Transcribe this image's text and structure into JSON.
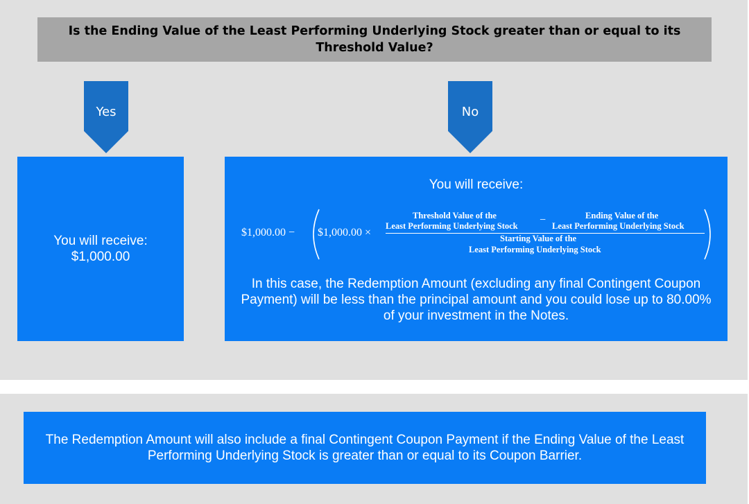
{
  "question": "Is the Ending Value of the Least Performing Underlying Stock greater than or equal to its Threshold Value?",
  "arrows": {
    "yes": "Yes",
    "no": "No"
  },
  "yes_box": {
    "line1": "You will receive:",
    "line2": "$1,000.00"
  },
  "no_box": {
    "heading": "You will receive:",
    "formula": {
      "principal1": "$1,000.00 −",
      "principal2": "$1,000.00 ×",
      "num_left_1": "Threshold Value of the",
      "num_left_2": "Least Performing Underlying Stock",
      "minus": "−",
      "num_right_1": "Ending Value of the",
      "num_right_2": "Least Performing Underlying Stock",
      "den_1": "Starting Value of the",
      "den_2": "Least Performing Underlying Stock"
    },
    "note": "In this case, the Redemption Amount (excluding any final Contingent Coupon Payment) will be less than the principal amount and you could lose up to 80.00% of your investment in the Notes."
  },
  "bottom_note": "The Redemption Amount will also include a final Contingent Coupon Payment if the Ending Value of the Least Performing Underlying Stock is greater than or equal to its Coupon Barrier.",
  "colors": {
    "box_blue": "#0a7cf5",
    "arrow_blue": "#1a6fc4",
    "question_gray": "#a6a6a6",
    "panel_gray": "#e0e0e0"
  }
}
